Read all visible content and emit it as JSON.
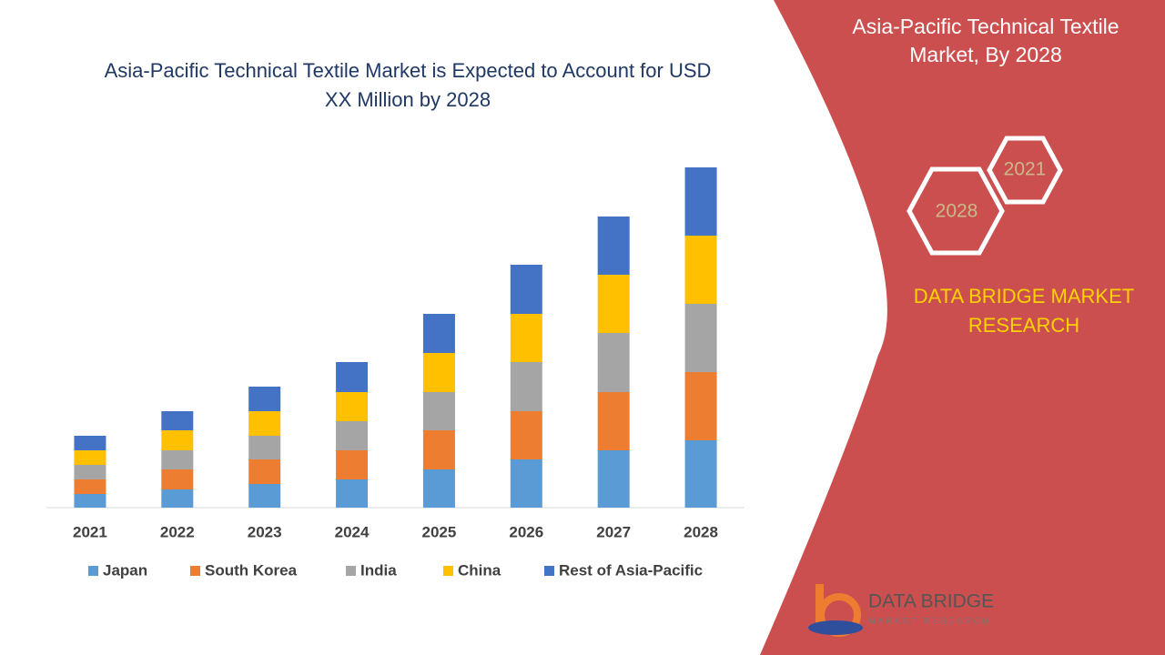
{
  "chart_data": {
    "type": "stacked_bar",
    "title": "Asia-Pacific Technical Textile Market is Expected to Account for USD XX Million by 2028",
    "categories": [
      "2021",
      "2022",
      "2023",
      "2024",
      "2025",
      "2026",
      "2027",
      "2028"
    ],
    "series": [
      {
        "name": "Japan",
        "color": "#5b9bd5",
        "values": [
          15,
          20,
          26,
          31,
          42,
          53,
          63,
          74
        ]
      },
      {
        "name": "South Korea",
        "color": "#ed7d31",
        "values": [
          16,
          22,
          27,
          32,
          43,
          53,
          64,
          75
        ]
      },
      {
        "name": "India",
        "color": "#a5a5a5",
        "values": [
          16,
          21,
          26,
          32,
          42,
          54,
          65,
          75
        ]
      },
      {
        "name": "China",
        "color": "#ffc000",
        "values": [
          16,
          22,
          27,
          32,
          43,
          53,
          64,
          75
        ]
      },
      {
        "name": "Rest of Asia-Pacific",
        "color": "#4472c4",
        "values": [
          16,
          21,
          27,
          33,
          43,
          54,
          64,
          75
        ]
      }
    ],
    "ylim": [
      0,
      400
    ]
  },
  "panel": {
    "title": "Asia-Pacific Technical Textile Market, By 2028",
    "hexagons": [
      "2021",
      "2028"
    ],
    "brand": "DATA BRIDGE MARKET RESEARCH",
    "logo_name": "DATA BRIDGE",
    "logo_sub": "MARKET RESEARCH"
  }
}
